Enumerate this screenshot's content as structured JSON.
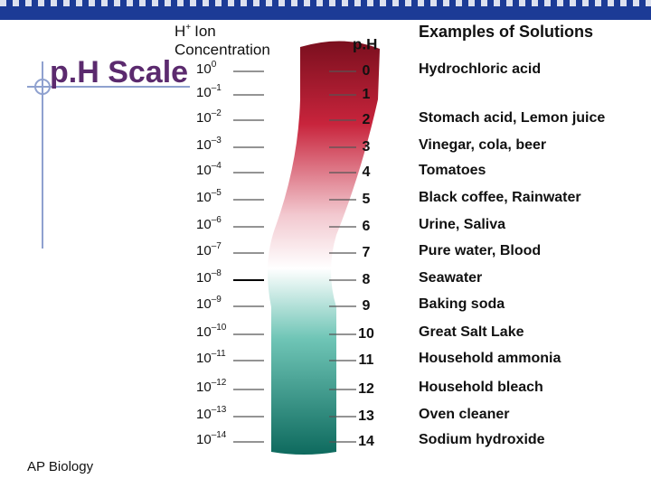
{
  "title": "p.H Scale",
  "footer": "AP Biology",
  "headers": {
    "ion_symbol": "H",
    "ion_superscript": "+",
    "ion_text": "Ion",
    "ion_line2": "Concentration",
    "ph": "p.H",
    "examples": "Examples of Solutions"
  },
  "rows": [
    {
      "base": "10",
      "exp": "0",
      "ph": "0",
      "example": "Hydrochloric acid"
    },
    {
      "base": "10",
      "exp": "–1",
      "ph": "1",
      "example": ""
    },
    {
      "base": "10",
      "exp": "–2",
      "ph": "2",
      "example": "Stomach acid, Lemon juice"
    },
    {
      "base": "10",
      "exp": "–3",
      "ph": "3",
      "example": "Vinegar, cola, beer"
    },
    {
      "base": "10",
      "exp": "–4",
      "ph": "4",
      "example": "Tomatoes"
    },
    {
      "base": "10",
      "exp": "–5",
      "ph": "5",
      "example": "Black coffee, Rainwater"
    },
    {
      "base": "10",
      "exp": "–6",
      "ph": "6",
      "example": "Urine, Saliva"
    },
    {
      "base": "10",
      "exp": "–7",
      "ph": "7",
      "example": "Pure water, Blood"
    },
    {
      "base": "10",
      "exp": "–8",
      "ph": "8",
      "example": "Seawater"
    },
    {
      "base": "10",
      "exp": "–9",
      "ph": "9",
      "example": "Baking soda"
    },
    {
      "base": "10",
      "exp": "–10",
      "ph": "10",
      "example": "Great Salt Lake"
    },
    {
      "base": "10",
      "exp": "–11",
      "ph": "11",
      "example": "Household ammonia"
    },
    {
      "base": "10",
      "exp": "–12",
      "ph": "12",
      "example": "Household bleach"
    },
    {
      "base": "10",
      "exp": "–13",
      "ph": "13",
      "example": "Oven cleaner"
    },
    {
      "base": "10",
      "exp": "–14",
      "ph": "14",
      "example": "Sodium hydroxide"
    }
  ]
}
